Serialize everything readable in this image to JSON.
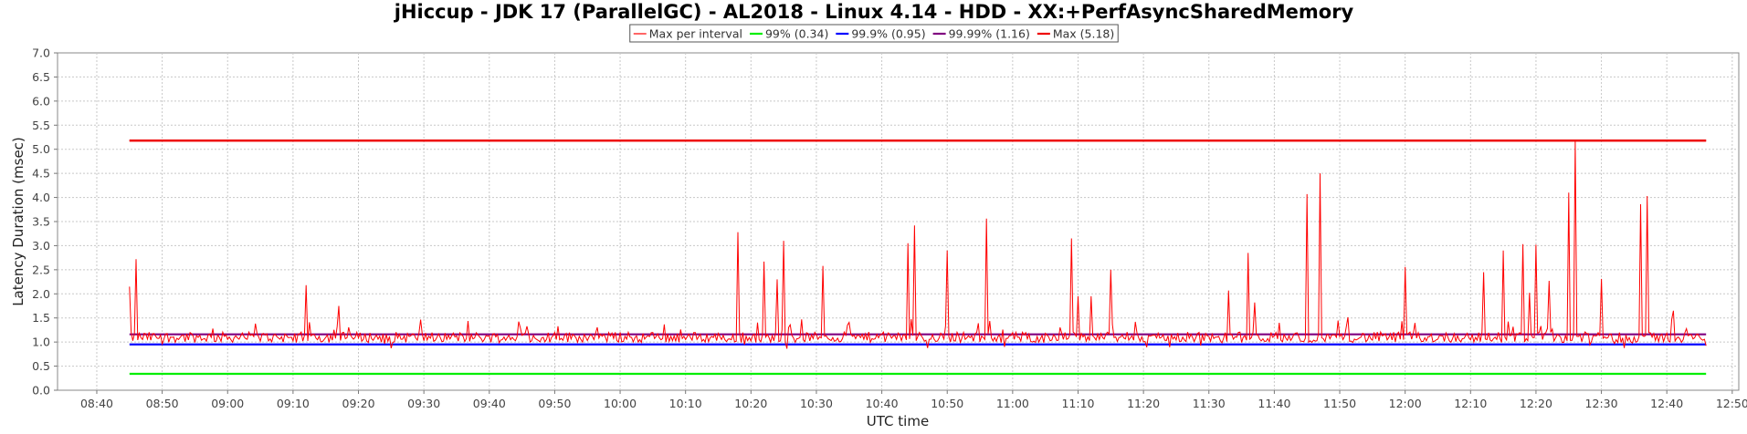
{
  "chart_data": {
    "type": "line",
    "title": "jHiccup - JDK 17 (ParallelGC) - AL2018 - Linux 4.14 - HDD - XX:+PerfAsyncSharedMemory",
    "xlabel": "UTC time",
    "ylabel": "Latency Duration (msec)",
    "ylim": [
      0,
      7
    ],
    "y_ticks": [
      "0.0",
      "0.5",
      "1.0",
      "1.5",
      "2.0",
      "2.5",
      "3.0",
      "3.5",
      "4.0",
      "4.5",
      "5.0",
      "5.5",
      "6.0",
      "6.5",
      "7.0"
    ],
    "xlim_minutes": [
      514,
      771
    ],
    "x_ticks": [
      "08:40",
      "08:50",
      "09:00",
      "09:10",
      "09:20",
      "09:30",
      "09:40",
      "09:50",
      "10:00",
      "10:10",
      "10:20",
      "10:30",
      "10:40",
      "10:50",
      "11:00",
      "11:10",
      "11:20",
      "11:30",
      "11:40",
      "11:50",
      "12:00",
      "12:10",
      "12:20",
      "12:30",
      "12:40",
      "12:50"
    ],
    "grid": true,
    "legend_placement": "top-center",
    "series": [
      {
        "name": "Max per interval",
        "color": "#ff0000",
        "baseline": 1.1,
        "start": "08:45",
        "end": "12:45",
        "spikes": [
          [
            "08:45",
            2.15
          ],
          [
            "08:46",
            2.72
          ],
          [
            "09:12",
            2.18
          ],
          [
            "09:17",
            1.75
          ],
          [
            "10:18",
            3.28
          ],
          [
            "10:22",
            2.67
          ],
          [
            "10:24",
            2.3
          ],
          [
            "10:25",
            3.1
          ],
          [
            "10:31",
            2.58
          ],
          [
            "10:44",
            3.05
          ],
          [
            "10:45",
            3.42
          ],
          [
            "10:50",
            2.9
          ],
          [
            "10:56",
            3.56
          ],
          [
            "11:09",
            3.15
          ],
          [
            "11:10",
            1.95
          ],
          [
            "11:12",
            1.95
          ],
          [
            "11:15",
            2.5
          ],
          [
            "11:33",
            2.07
          ],
          [
            "11:36",
            2.85
          ],
          [
            "11:37",
            1.82
          ],
          [
            "11:45",
            4.07
          ],
          [
            "11:47",
            4.5
          ],
          [
            "12:00",
            2.56
          ],
          [
            "12:12",
            2.45
          ],
          [
            "12:15",
            2.9
          ],
          [
            "12:18",
            3.03
          ],
          [
            "12:19",
            2.02
          ],
          [
            "12:20",
            3.02
          ],
          [
            "12:22",
            2.27
          ],
          [
            "12:25",
            4.1
          ],
          [
            "12:26",
            5.18
          ],
          [
            "12:30",
            2.31
          ],
          [
            "12:36",
            3.86
          ],
          [
            "12:37",
            4.03
          ],
          [
            "12:41",
            1.65
          ]
        ]
      },
      {
        "name": "99% (0.34)",
        "color": "#00ee00",
        "value": 0.34,
        "start": "08:45",
        "end": "12:46"
      },
      {
        "name": "99.9% (0.95)",
        "color": "#0000ff",
        "value": 0.95,
        "start": "08:45",
        "end": "12:46"
      },
      {
        "name": "99.99% (1.16)",
        "color": "#800080",
        "value": 1.16,
        "start": "08:45",
        "end": "12:46"
      },
      {
        "name": "Max (5.18)",
        "color": "#ee0000",
        "value": 5.18,
        "start": "08:45",
        "end": "12:46"
      }
    ]
  }
}
